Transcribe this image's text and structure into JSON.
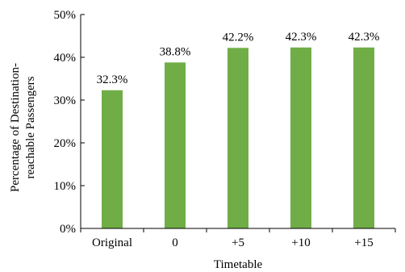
{
  "chart_data": {
    "type": "bar",
    "categories": [
      "Original",
      "0",
      "+5",
      "+10",
      "+15"
    ],
    "values": [
      32.3,
      38.8,
      42.2,
      42.3,
      42.3
    ],
    "data_labels": [
      "32.3%",
      "38.8%",
      "42.2%",
      "42.3%",
      "42.3%"
    ],
    "xlabel": "Timetable",
    "ylabel_lines": [
      "Percentage of Destination-",
      "reachable Passengers"
    ],
    "ylim": [
      0,
      50
    ],
    "yticks": [
      0,
      10,
      20,
      30,
      40,
      50
    ],
    "ytick_labels": [
      "0%",
      "10%",
      "20%",
      "30%",
      "40%",
      "50%"
    ],
    "grid": false,
    "bar_color": "#70ad47"
  }
}
